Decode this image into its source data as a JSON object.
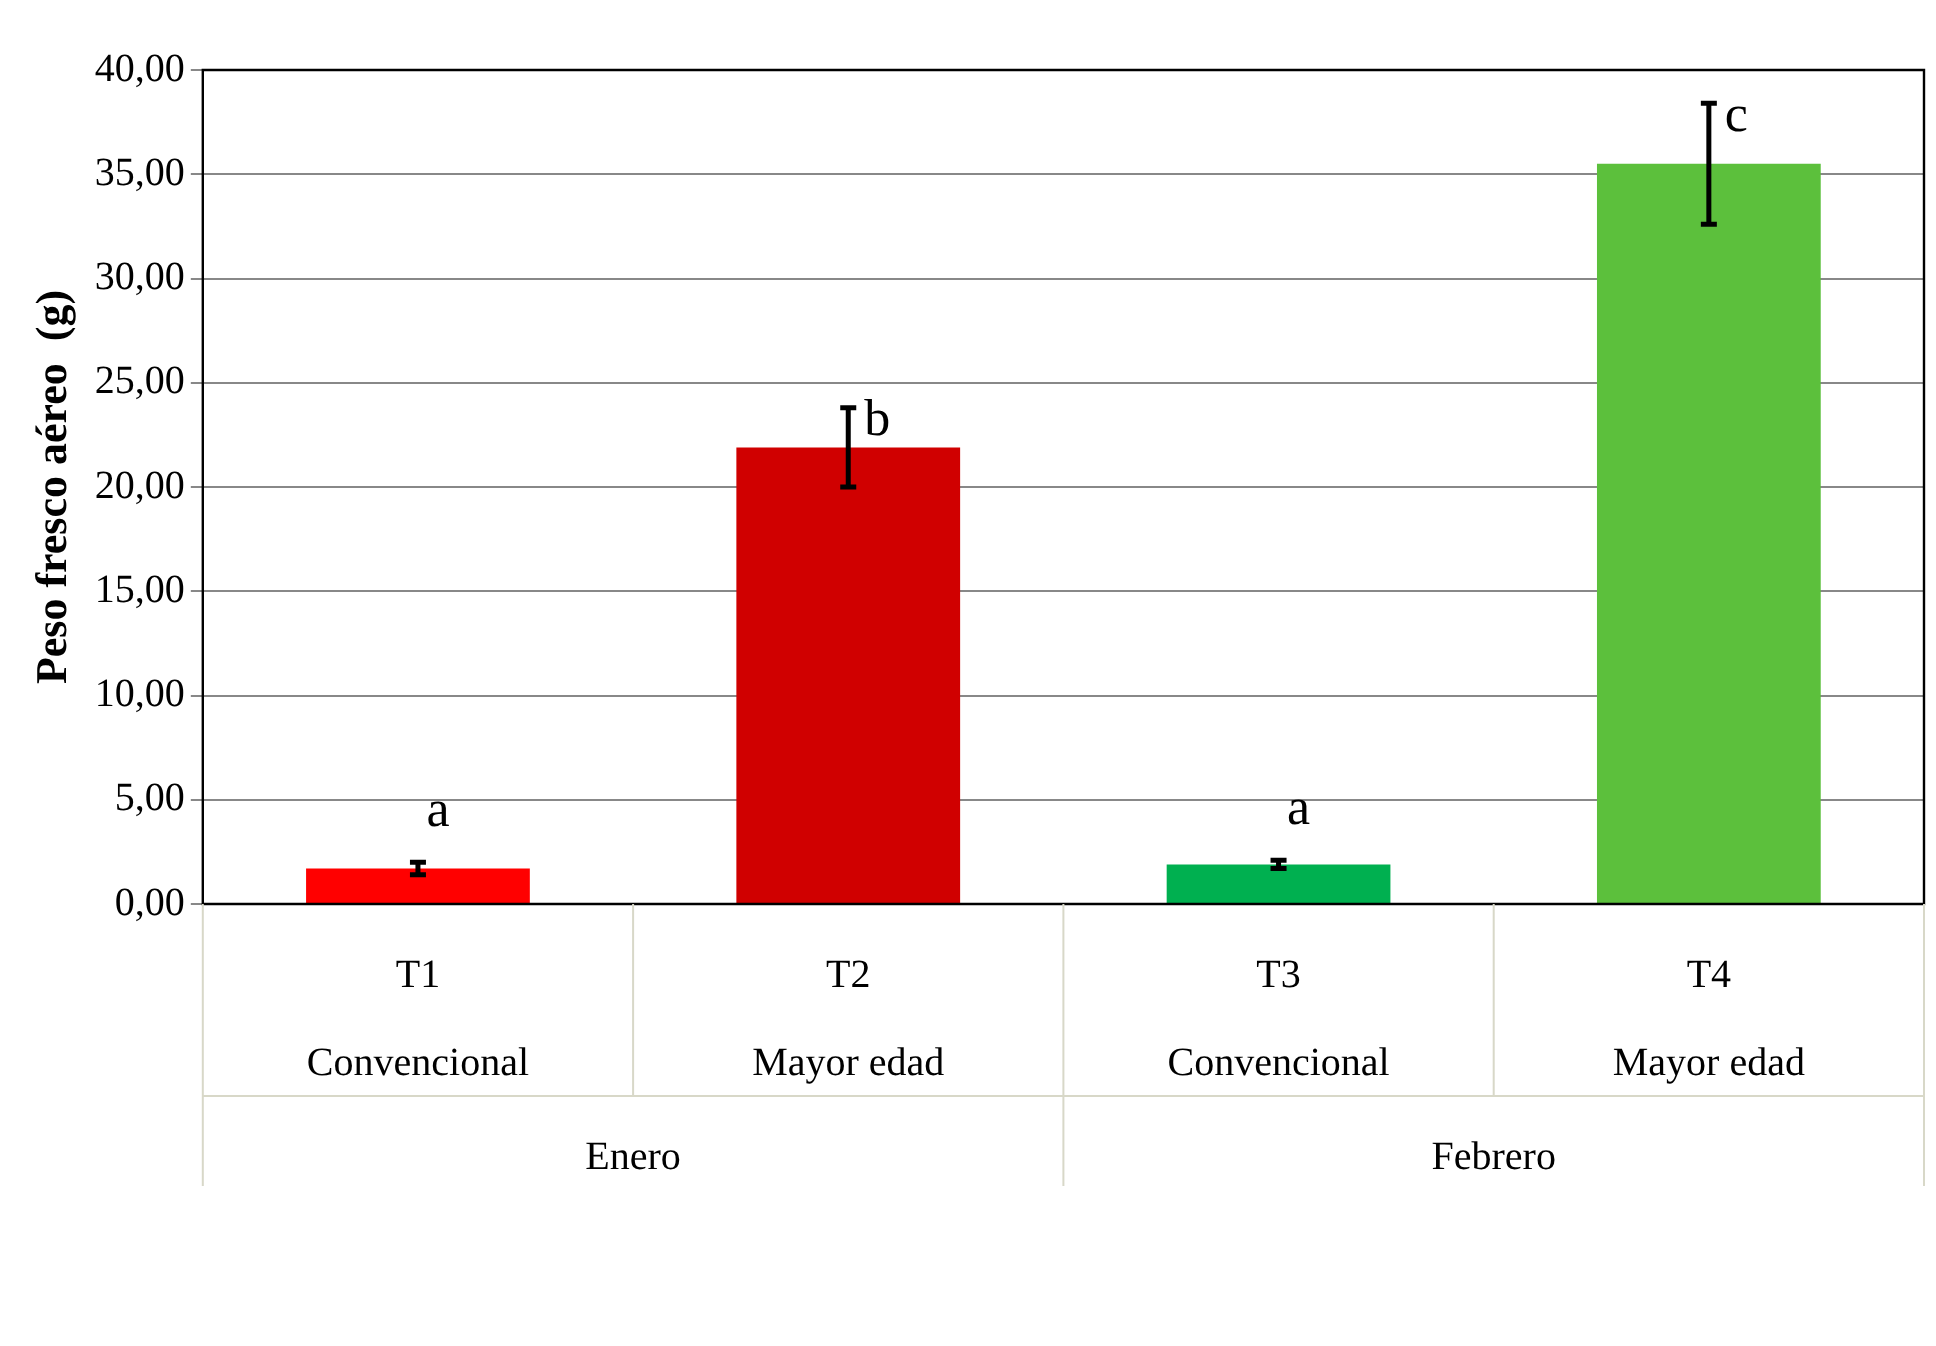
{
  "chart_data": {
    "type": "bar",
    "ylabel": "Peso fresco aéreo  (g)",
    "categories": [
      "T1",
      "T2",
      "T3",
      "T4"
    ],
    "values": [
      1.7,
      21.9,
      1.9,
      35.5
    ],
    "colors": [
      "#ff0000",
      "#d00000",
      "#00b050",
      "#5cc03c"
    ],
    "errors": [
      0.3,
      1.9,
      0.2,
      2.9
    ],
    "ylim": [
      0,
      40
    ],
    "yticks": [
      {
        "value": 0,
        "label": "0,00"
      },
      {
        "value": 5,
        "label": "5,00"
      },
      {
        "value": 10,
        "label": "10,00"
      },
      {
        "value": 15,
        "label": "15,00"
      },
      {
        "value": 20,
        "label": "20,00"
      },
      {
        "value": 25,
        "label": "25,00"
      },
      {
        "value": 30,
        "label": "30,00"
      },
      {
        "value": 35,
        "label": "35,00"
      },
      {
        "value": 40,
        "label": "40,00"
      }
    ],
    "grid": "y",
    "annotations": [
      "a",
      "b",
      "a",
      "c",
      "Convencional",
      "Mayor edad",
      "Convencional",
      "Mayor edad",
      "Enero",
      "Febrero"
    ]
  }
}
